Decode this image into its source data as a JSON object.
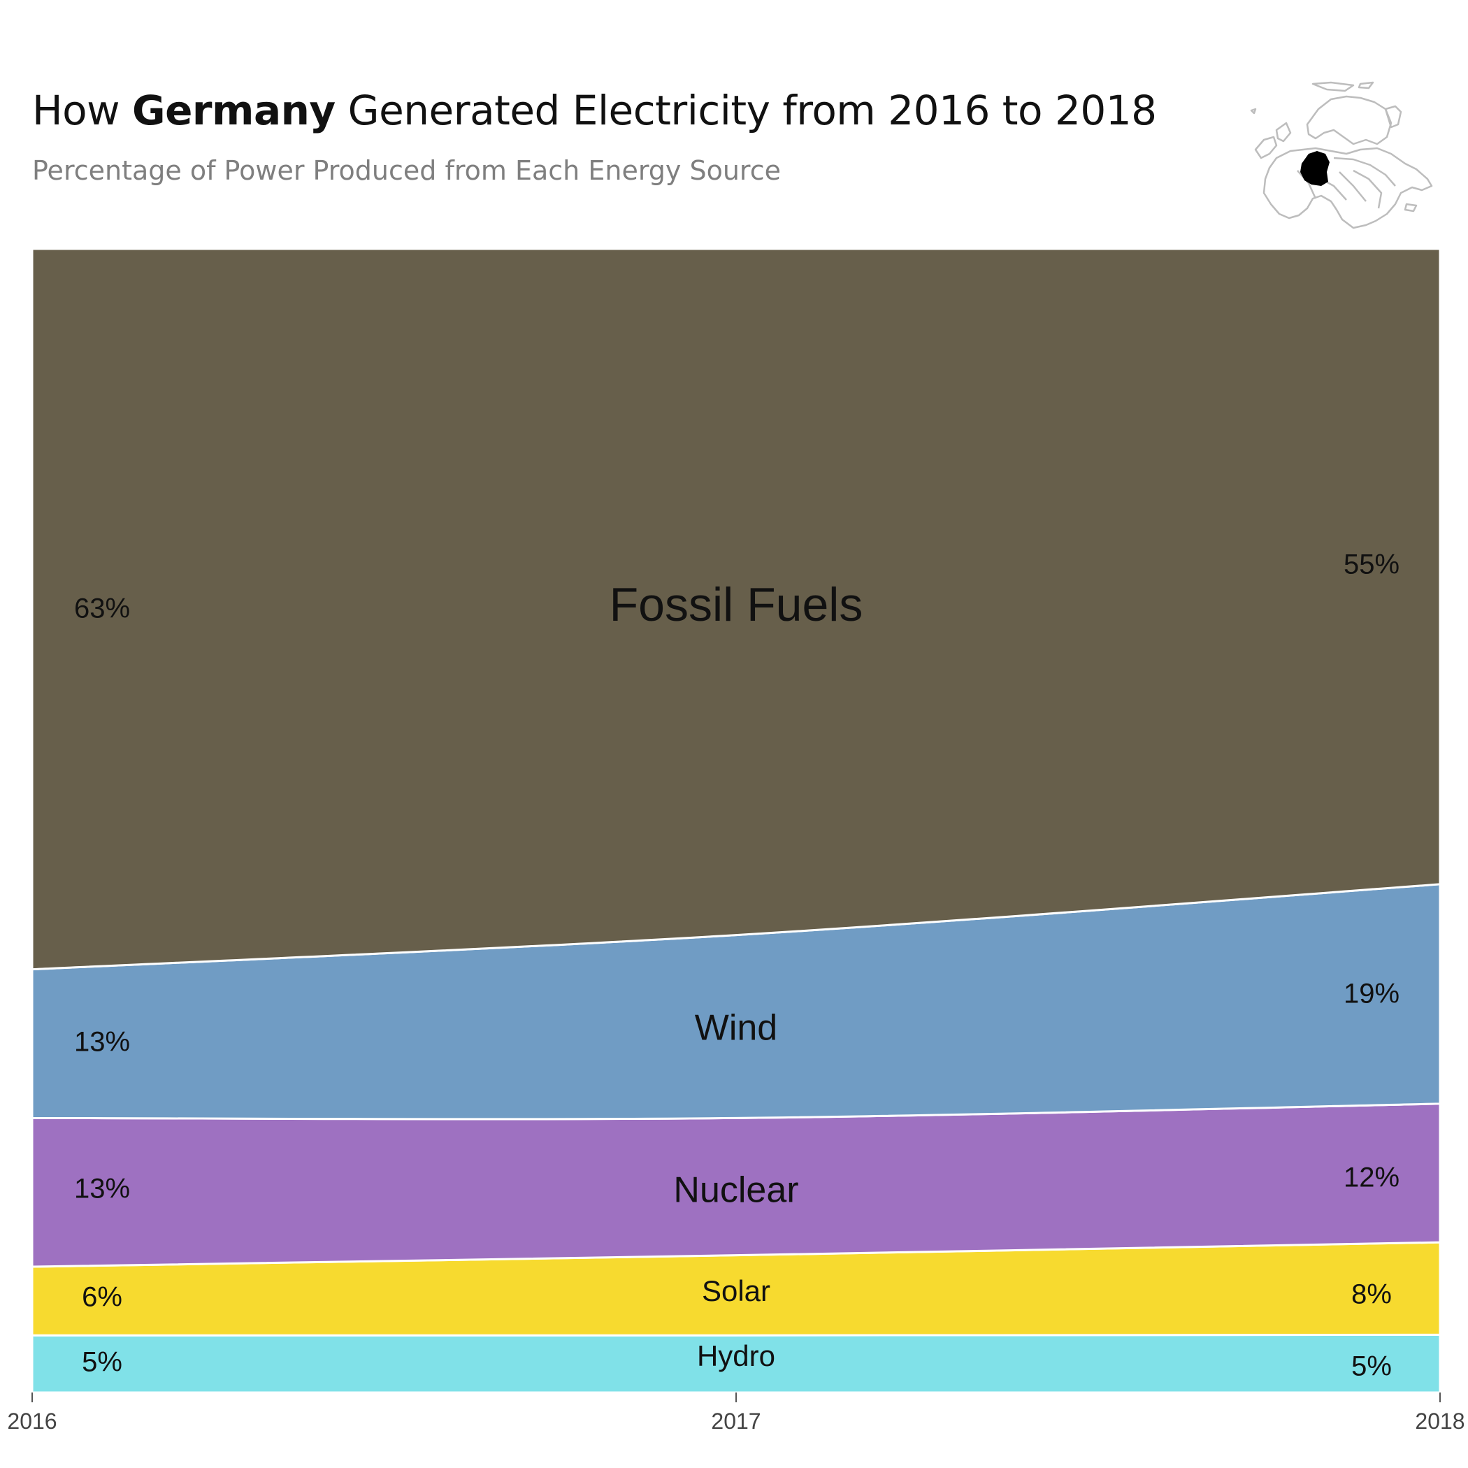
{
  "title": {
    "prefix": "How ",
    "country": "Germany",
    "suffix": " Generated Electricity from 2016 to 2018"
  },
  "subtitle": "Percentage of Power Produced from Each Energy Source",
  "map": {
    "icon": "europe-map-icon",
    "highlight_color": "#000000",
    "outline_color": "#bdbdbd"
  },
  "chart_data": {
    "type": "area",
    "stacked": true,
    "x": [
      "2016",
      "2017",
      "2018"
    ],
    "ylim": [
      0,
      100
    ],
    "grid": false,
    "legend": "inline labels",
    "series": [
      {
        "name": "Hydro",
        "values": [
          5,
          5,
          5
        ],
        "labels": [
          "5%",
          "",
          "5%"
        ],
        "color": "#80e1e8"
      },
      {
        "name": "Solar",
        "values": [
          6,
          7,
          8
        ],
        "labels": [
          "6%",
          "",
          "8%"
        ],
        "color": "#f7da2f"
      },
      {
        "name": "Nuclear",
        "values": [
          13,
          12,
          12
        ],
        "labels": [
          "13%",
          "",
          "12%"
        ],
        "color": "#9e71c1"
      },
      {
        "name": "Wind",
        "values": [
          13,
          16,
          19
        ],
        "labels": [
          "13%",
          "",
          "19%"
        ],
        "color": "#709cc4"
      },
      {
        "name": "Fossil Fuels",
        "values": [
          63,
          60,
          55
        ],
        "labels": [
          "63%",
          "",
          "55%"
        ],
        "color": "#675f4b"
      }
    ]
  }
}
